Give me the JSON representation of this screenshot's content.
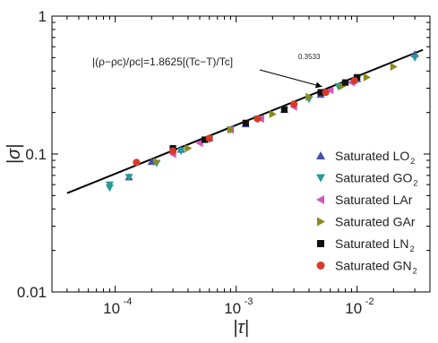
{
  "chart_data": {
    "type": "scatter",
    "title": "",
    "xlabel": "|τ|",
    "ylabel": "|σ|",
    "x_scale": "log",
    "y_scale": "log",
    "xlim": [
      3e-05,
      0.04
    ],
    "ylim": [
      0.01,
      1
    ],
    "x_ticks": [
      {
        "value": 0.0001,
        "base": "10",
        "exp": "-4"
      },
      {
        "value": 0.001,
        "base": "10",
        "exp": "-3"
      },
      {
        "value": 0.01,
        "base": "10",
        "exp": "-2"
      }
    ],
    "y_ticks": [
      {
        "value": 0.01,
        "label": "0.01"
      },
      {
        "value": 0.1,
        "label": "0.1"
      },
      {
        "value": 1,
        "label": "1"
      }
    ],
    "grid": false,
    "legend_position": "right",
    "annotation": {
      "text_main": "|(ρ−ρc)/ρc|=1.8625[(Tc−T)/Tc]",
      "exponent": "0.3533",
      "arrow_to": [
        0.0055,
        0.29
      ]
    },
    "fit_line": {
      "coefficient": 1.8625,
      "exponent": 0.3533,
      "x_range": [
        4e-05,
        0.035
      ]
    },
    "series": [
      {
        "name": "Saturated LO",
        "sub": "2",
        "marker": "triangle-up",
        "color": "#4a4ea8",
        "points": [
          [
            0.00013,
            0.068
          ],
          [
            0.0002,
            0.088
          ],
          [
            0.00035,
            0.108
          ],
          [
            0.0006,
            0.13
          ],
          [
            0.0012,
            0.165
          ],
          [
            0.0025,
            0.21
          ],
          [
            0.005,
            0.27
          ],
          [
            0.01,
            0.35
          ],
          [
            0.03,
            0.53
          ]
        ]
      },
      {
        "name": "Saturated GO",
        "sub": "2",
        "marker": "triangle-down",
        "color": "#2a9a98",
        "points": [
          [
            9e-05,
            0.06
          ],
          [
            9e-05,
            0.057
          ],
          [
            0.00013,
            0.068
          ],
          [
            0.00022,
            0.086
          ],
          [
            0.00035,
            0.105
          ],
          [
            0.0006,
            0.128
          ],
          [
            0.0009,
            0.15
          ],
          [
            0.0015,
            0.18
          ],
          [
            0.0025,
            0.21
          ],
          [
            0.004,
            0.25
          ],
          [
            0.007,
            0.31
          ],
          [
            0.01,
            0.35
          ],
          [
            0.03,
            0.5
          ]
        ]
      },
      {
        "name": "Saturated LAr",
        "sub": "",
        "marker": "triangle-left",
        "color": "#d455b8",
        "points": [
          [
            0.0003,
            0.1
          ],
          [
            0.0005,
            0.12
          ],
          [
            0.0009,
            0.15
          ],
          [
            0.0016,
            0.18
          ],
          [
            0.003,
            0.22
          ],
          [
            0.006,
            0.29
          ],
          [
            0.009,
            0.33
          ]
        ]
      },
      {
        "name": "Saturated GAr",
        "sub": "",
        "marker": "triangle-right",
        "color": "#8a8a1e",
        "points": [
          [
            0.00022,
            0.088
          ],
          [
            0.0004,
            0.11
          ],
          [
            0.0009,
            0.15
          ],
          [
            0.002,
            0.195
          ],
          [
            0.004,
            0.26
          ],
          [
            0.0075,
            0.31
          ],
          [
            0.012,
            0.36
          ],
          [
            0.02,
            0.43
          ]
        ]
      },
      {
        "name": "Saturated LN",
        "sub": "2",
        "marker": "square",
        "color": "#111111",
        "points": [
          [
            0.0003,
            0.11
          ],
          [
            0.00055,
            0.127
          ],
          [
            0.0012,
            0.168
          ],
          [
            0.0025,
            0.21
          ],
          [
            0.005,
            0.28
          ],
          [
            0.008,
            0.33
          ],
          [
            0.01,
            0.36
          ]
        ]
      },
      {
        "name": "Saturated GN",
        "sub": "2",
        "marker": "circle",
        "color": "#d83a2a",
        "points": [
          [
            0.00015,
            0.087
          ],
          [
            0.0003,
            0.105
          ],
          [
            0.0006,
            0.13
          ],
          [
            0.0015,
            0.18
          ],
          [
            0.003,
            0.23
          ],
          [
            0.0055,
            0.28
          ],
          [
            0.0095,
            0.34
          ]
        ]
      }
    ]
  }
}
